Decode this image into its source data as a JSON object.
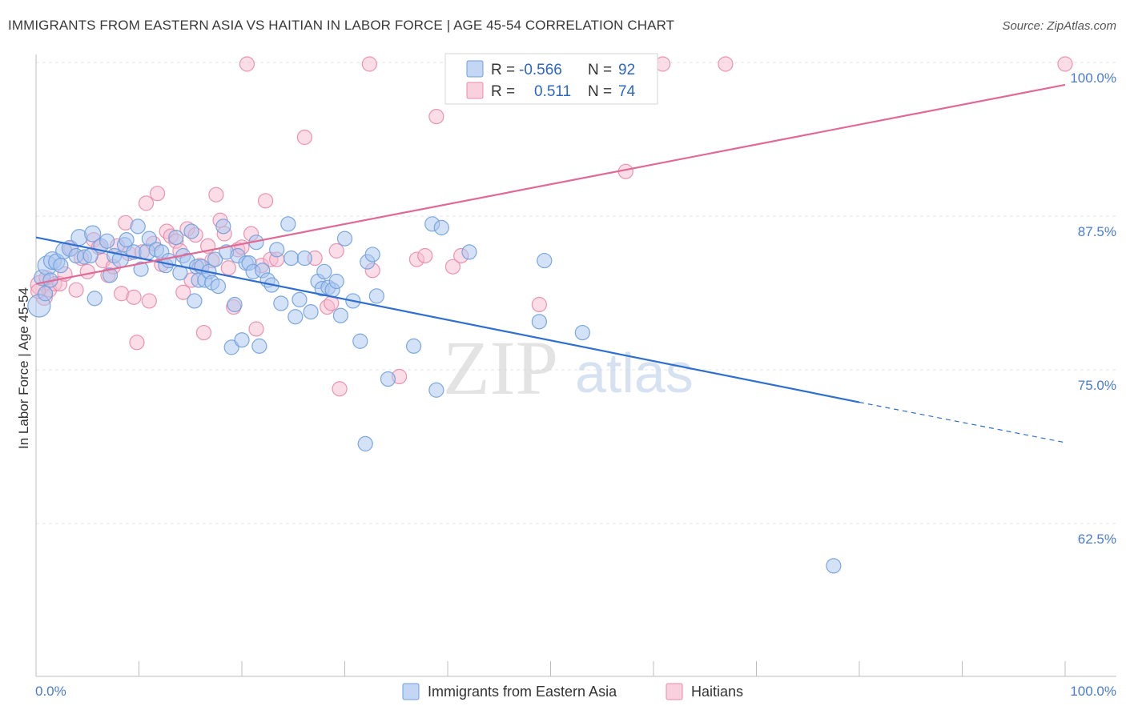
{
  "header": {
    "title": "IMMIGRANTS FROM EASTERN ASIA VS HAITIAN IN LABOR FORCE | AGE 45-54 CORRELATION CHART",
    "source": "Source: ZipAtlas.com"
  },
  "watermark": {
    "zip": "ZIP",
    "atlas": "atlas"
  },
  "colors": {
    "blue_fill": "#a9c6ef",
    "blue_stroke": "#6f9fdc",
    "blue_line": "#2e6fd0",
    "pink_fill": "#f6bcd0",
    "pink_stroke": "#e88aab",
    "pink_line": "#e06a95",
    "grid": "#e3e3e3",
    "axis": "#bdbdbd"
  },
  "legend": {
    "series1": {
      "r_label": "R =",
      "r_value": "-0.566",
      "n_label": "N =",
      "n_value": "92"
    },
    "series2": {
      "r_label": "R =",
      "r_value": "0.511",
      "n_label": "N =",
      "n_value": "74"
    }
  },
  "chart_data": {
    "type": "scatter",
    "title": "IMMIGRANTS FROM EASTERN ASIA VS HAITIAN IN LABOR FORCE | AGE 45-54 CORRELATION CHART",
    "xlabel": "",
    "ylabel": "In Labor Force | Age 45-54",
    "xlim": [
      0,
      100
    ],
    "ylim": [
      50,
      102
    ],
    "x_tick_labels": [
      {
        "value": 0,
        "label": "0.0%"
      },
      {
        "value": 100,
        "label": "100.0%"
      }
    ],
    "x_minor_ticks": [
      0,
      10,
      20,
      30,
      40,
      50,
      60,
      70,
      80,
      90,
      100
    ],
    "y_ticks": [
      {
        "value": 62.5,
        "label": "62.5%"
      },
      {
        "value": 75.0,
        "label": "75.0%"
      },
      {
        "value": 87.5,
        "label": "87.5%"
      },
      {
        "value": 100.0,
        "label": "100.0%"
      }
    ],
    "legend_position": "bottom-center",
    "series": [
      {
        "name": "Immigrants from Eastern Asia",
        "color": "#6f9fdc",
        "R": -0.566,
        "N": 92,
        "trend": {
          "x0": 0,
          "y0": 85.8,
          "x1": 80,
          "y1": 72.3,
          "dash_x1": 100,
          "dash_y1": 69.0
        },
        "points": [
          [
            0.3,
            80.2,
            14
          ],
          [
            0.6,
            82.5,
            10
          ],
          [
            0.9,
            81.2,
            9
          ],
          [
            1.1,
            83.5,
            12
          ],
          [
            1.6,
            83.9,
            11
          ],
          [
            2.0,
            83.8,
            10
          ],
          [
            2.4,
            83.5,
            9
          ],
          [
            2.7,
            84.7,
            10
          ],
          [
            3.3,
            84.9,
            10
          ],
          [
            3.9,
            84.3,
            9
          ],
          [
            4.2,
            85.8,
            10
          ],
          [
            4.7,
            84.2,
            9
          ],
          [
            5.3,
            84.3,
            9
          ],
          [
            5.5,
            86.1,
            10
          ],
          [
            5.7,
            80.8,
            9
          ],
          [
            6.3,
            85.1,
            9
          ],
          [
            6.9,
            85.5,
            9
          ],
          [
            7.2,
            82.7,
            9
          ],
          [
            7.6,
            84.3,
            9
          ],
          [
            8.2,
            84.0,
            10
          ],
          [
            8.6,
            85.2,
            9
          ],
          [
            8.8,
            85.6,
            9
          ],
          [
            9.5,
            84.6,
            9
          ],
          [
            9.9,
            86.7,
            9
          ],
          [
            10.2,
            83.2,
            9
          ],
          [
            10.8,
            84.6,
            10
          ],
          [
            11.0,
            85.7,
            9
          ],
          [
            11.7,
            84.8,
            9
          ],
          [
            12.2,
            84.6,
            9
          ],
          [
            12.6,
            83.5,
            9
          ],
          [
            12.9,
            83.9,
            9
          ],
          [
            13.6,
            85.8,
            9
          ],
          [
            14.0,
            82.9,
            9
          ],
          [
            14.3,
            84.3,
            9
          ],
          [
            14.7,
            83.9,
            9
          ],
          [
            15.1,
            86.3,
            9
          ],
          [
            15.4,
            80.6,
            9
          ],
          [
            15.6,
            83.4,
            9
          ],
          [
            15.8,
            82.3,
            9
          ],
          [
            16.1,
            83.4,
            9
          ],
          [
            16.4,
            82.3,
            9
          ],
          [
            16.8,
            83.0,
            9
          ],
          [
            17.1,
            82.1,
            9
          ],
          [
            17.4,
            84.0,
            9
          ],
          [
            17.7,
            81.8,
            9
          ],
          [
            18.2,
            86.7,
            9
          ],
          [
            18.5,
            84.6,
            9
          ],
          [
            19.0,
            76.8,
            9
          ],
          [
            19.3,
            80.3,
            9
          ],
          [
            19.6,
            84.3,
            9
          ],
          [
            20.0,
            77.4,
            9
          ],
          [
            20.4,
            83.7,
            9
          ],
          [
            20.7,
            83.7,
            9
          ],
          [
            21.1,
            83.0,
            9
          ],
          [
            21.4,
            85.4,
            9
          ],
          [
            21.7,
            76.9,
            9
          ],
          [
            22.0,
            83.1,
            9
          ],
          [
            22.5,
            82.3,
            9
          ],
          [
            22.9,
            81.9,
            9
          ],
          [
            23.4,
            84.8,
            9
          ],
          [
            23.8,
            80.4,
            9
          ],
          [
            24.5,
            86.9,
            9
          ],
          [
            24.8,
            84.1,
            9
          ],
          [
            25.2,
            79.3,
            9
          ],
          [
            25.6,
            80.7,
            9
          ],
          [
            26.1,
            84.1,
            9
          ],
          [
            26.7,
            79.7,
            9
          ],
          [
            27.4,
            82.2,
            9
          ],
          [
            27.8,
            81.6,
            9
          ],
          [
            28.0,
            83.0,
            9
          ],
          [
            28.4,
            81.7,
            9
          ],
          [
            28.8,
            81.5,
            9
          ],
          [
            29.2,
            82.2,
            9
          ],
          [
            29.6,
            79.4,
            9
          ],
          [
            30.0,
            85.7,
            9
          ],
          [
            30.8,
            80.6,
            9
          ],
          [
            31.5,
            77.3,
            9
          ],
          [
            32.2,
            83.8,
            9
          ],
          [
            32.7,
            84.4,
            9
          ],
          [
            33.1,
            81.0,
            9
          ],
          [
            34.2,
            74.2,
            9
          ],
          [
            36.7,
            76.9,
            9
          ],
          [
            38.5,
            86.9,
            9
          ],
          [
            38.9,
            73.3,
            9
          ],
          [
            39.4,
            86.6,
            9
          ],
          [
            42.1,
            84.6,
            9
          ],
          [
            32.0,
            68.9,
            9
          ],
          [
            48.9,
            78.9,
            9
          ],
          [
            49.4,
            83.9,
            9
          ],
          [
            53.1,
            78.0,
            9
          ],
          [
            77.5,
            58.9,
            9
          ],
          [
            1.4,
            82.3,
            9
          ]
        ]
      },
      {
        "name": "Haitians",
        "color": "#e88aab",
        "R": 0.511,
        "N": 74,
        "trend": {
          "x0": 0,
          "y0": 82.0,
          "x1": 100,
          "y1": 98.3
        },
        "points": [
          [
            0.4,
            81.9,
            12
          ],
          [
            0.8,
            80.9,
            10
          ],
          [
            1.3,
            81.5,
            9
          ],
          [
            1.8,
            82.0,
            9
          ],
          [
            2.3,
            82.0,
            9
          ],
          [
            2.8,
            82.8,
            9
          ],
          [
            3.4,
            84.9,
            9
          ],
          [
            3.9,
            81.5,
            9
          ],
          [
            4.4,
            84.1,
            9
          ],
          [
            5.0,
            83.0,
            9
          ],
          [
            5.6,
            85.6,
            9
          ],
          [
            6.1,
            85.0,
            9
          ],
          [
            6.5,
            83.9,
            9
          ],
          [
            7.0,
            82.7,
            9
          ],
          [
            7.5,
            83.4,
            9
          ],
          [
            7.9,
            85.1,
            9
          ],
          [
            8.3,
            81.2,
            9
          ],
          [
            8.7,
            87.0,
            9
          ],
          [
            9.0,
            84.5,
            9
          ],
          [
            9.5,
            80.9,
            9
          ],
          [
            9.8,
            77.2,
            9
          ],
          [
            10.3,
            84.6,
            9
          ],
          [
            10.7,
            88.6,
            9
          ],
          [
            11.0,
            80.6,
            9
          ],
          [
            11.4,
            85.3,
            9
          ],
          [
            11.8,
            89.4,
            9
          ],
          [
            12.2,
            83.6,
            9
          ],
          [
            12.7,
            86.3,
            9
          ],
          [
            13.1,
            85.9,
            9
          ],
          [
            13.6,
            85.5,
            9
          ],
          [
            14.0,
            84.7,
            9
          ],
          [
            14.3,
            81.3,
            9
          ],
          [
            14.7,
            86.5,
            9
          ],
          [
            15.1,
            82.3,
            9
          ],
          [
            15.5,
            86.0,
            9
          ],
          [
            15.9,
            83.5,
            9
          ],
          [
            16.3,
            78.0,
            9
          ],
          [
            16.7,
            85.1,
            9
          ],
          [
            17.1,
            83.9,
            9
          ],
          [
            17.5,
            89.3,
            9
          ],
          [
            17.9,
            87.2,
            9
          ],
          [
            18.3,
            86.1,
            9
          ],
          [
            18.7,
            83.3,
            9
          ],
          [
            19.2,
            80.1,
            9
          ],
          [
            19.6,
            84.8,
            9
          ],
          [
            20.0,
            85.0,
            9
          ],
          [
            20.5,
            100.0,
            9
          ],
          [
            20.9,
            86.1,
            9
          ],
          [
            21.4,
            78.3,
            9
          ],
          [
            21.9,
            83.5,
            9
          ],
          [
            22.3,
            88.8,
            9
          ],
          [
            22.8,
            84.0,
            9
          ],
          [
            23.4,
            84.0,
            9
          ],
          [
            26.1,
            94.0,
            9
          ],
          [
            27.1,
            84.1,
            9
          ],
          [
            28.3,
            80.1,
            9
          ],
          [
            28.7,
            80.4,
            9
          ],
          [
            29.2,
            84.7,
            9
          ],
          [
            29.5,
            73.4,
            9
          ],
          [
            32.4,
            100.0,
            9
          ],
          [
            32.7,
            83.1,
            9
          ],
          [
            35.3,
            74.4,
            9
          ],
          [
            37.0,
            84.0,
            9
          ],
          [
            37.8,
            84.3,
            9
          ],
          [
            38.9,
            95.7,
            9
          ],
          [
            40.5,
            83.4,
            9
          ],
          [
            41.3,
            84.3,
            9
          ],
          [
            48.9,
            80.3,
            9
          ],
          [
            57.3,
            91.2,
            9
          ],
          [
            60.9,
            100.0,
            9
          ],
          [
            67.0,
            100.0,
            9
          ],
          [
            100.0,
            100.0,
            9
          ],
          [
            0.2,
            81.4,
            9
          ],
          [
            1.0,
            82.5,
            9
          ]
        ]
      }
    ]
  }
}
